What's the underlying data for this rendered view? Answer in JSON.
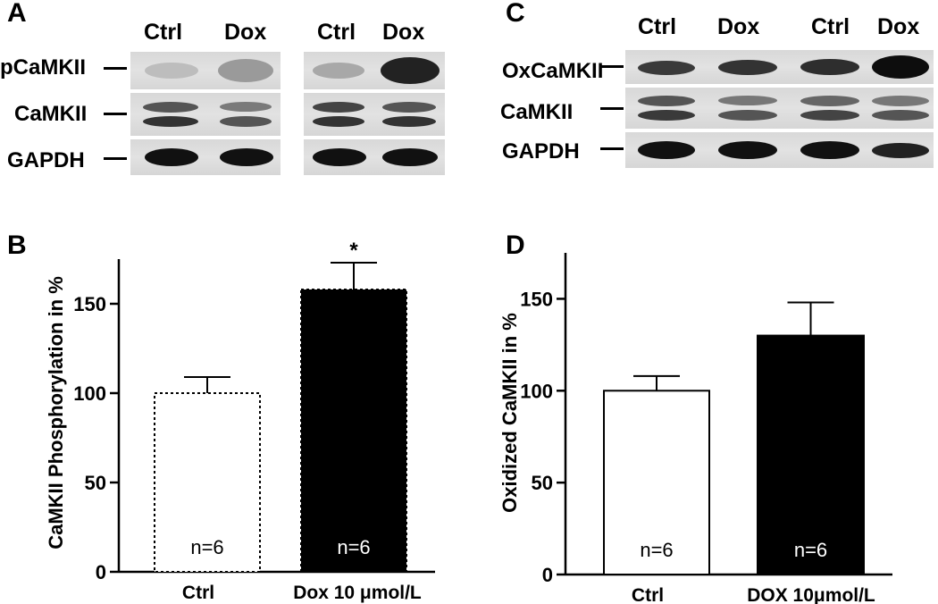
{
  "panel_a": {
    "label": "A",
    "lanes": [
      "Ctrl",
      "Dox",
      "Ctrl",
      "Dox"
    ],
    "rows": [
      "pCaMKII",
      "CaMKII",
      "GAPDH"
    ]
  },
  "panel_c": {
    "label": "C",
    "lanes": [
      "Ctrl",
      "Dox",
      "Ctrl",
      "Dox"
    ],
    "rows": [
      "OxCaMKII",
      "CaMKII",
      "GAPDH"
    ]
  },
  "chart_data": [
    {
      "type": "bar",
      "panel": "B",
      "categories": [
        "Ctrl",
        "Dox 10 μmol/L"
      ],
      "values": [
        100,
        158
      ],
      "errors": [
        9,
        15
      ],
      "bar_labels": [
        "n=6",
        "n=6"
      ],
      "significance": [
        "",
        "*"
      ],
      "colors": [
        "#ffffff",
        "#000000"
      ],
      "ylabel": "CaMKII Phosphorylation in %",
      "ylim": [
        0,
        175
      ],
      "yticks": [
        0,
        50,
        100,
        150
      ]
    },
    {
      "type": "bar",
      "panel": "D",
      "categories": [
        "Ctrl",
        "DOX 10μmol/L"
      ],
      "values": [
        100,
        130
      ],
      "errors": [
        8,
        18
      ],
      "bar_labels": [
        "n=6",
        "n=6"
      ],
      "colors": [
        "#ffffff",
        "#000000"
      ],
      "ylabel": "Oxidized CaMKII in %",
      "ylim": [
        0,
        175
      ],
      "yticks": [
        0,
        50,
        100,
        150
      ]
    }
  ]
}
